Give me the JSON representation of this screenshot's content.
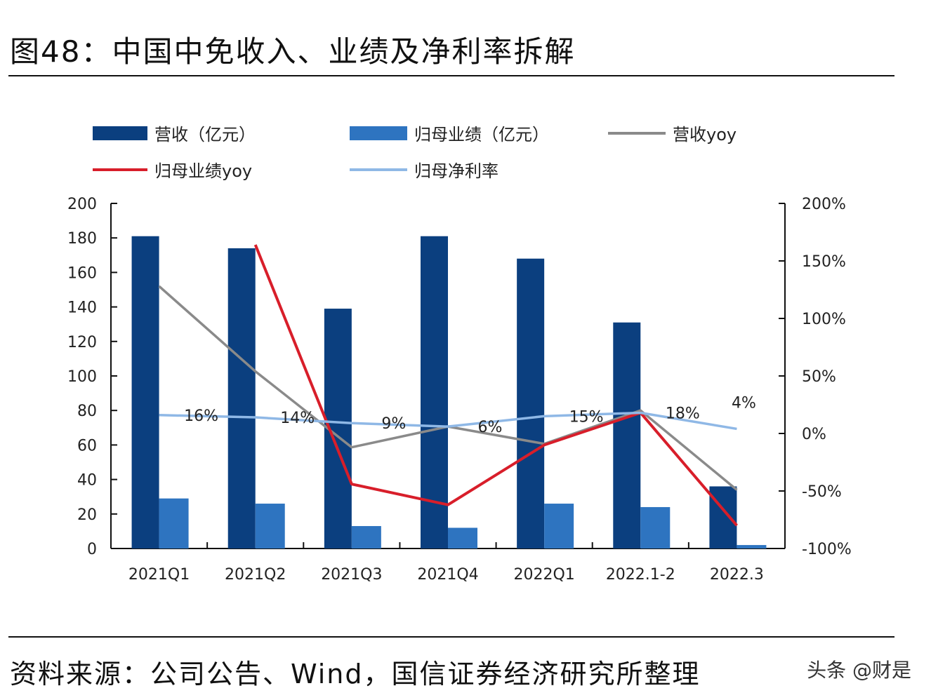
{
  "title": "图48：中国中免收入、业绩及净利率拆解",
  "source": "资料来源：公司公告、Wind，国信证券经济研究所整理",
  "watermark": "头条 @财是",
  "chart_data": {
    "type": "bar+line",
    "categories": [
      "2021Q1",
      "2021Q2",
      "2021Q3",
      "2021Q4",
      "2022Q1",
      "2022.1-2",
      "2022.3"
    ],
    "left_axis": {
      "ylim": [
        0,
        200
      ],
      "ticks": [
        "0",
        "20",
        "40",
        "60",
        "80",
        "100",
        "120",
        "140",
        "160",
        "180",
        "200"
      ]
    },
    "right_axis": {
      "ylim": [
        -100,
        200
      ],
      "ticks": [
        "-100%",
        "-50%",
        "0%",
        "50%",
        "100%",
        "150%",
        "200%"
      ]
    },
    "legend": [
      "营收（亿元）",
      "归母业绩（亿元）",
      "营收yoy",
      "归母业绩yoy",
      "归母净利率"
    ],
    "series": [
      {
        "name": "营收（亿元）",
        "kind": "bar",
        "axis": "left",
        "color": "#0b3f7f",
        "values": [
          181,
          174,
          139,
          181,
          168,
          131,
          36
        ]
      },
      {
        "name": "归母业绩（亿元）",
        "kind": "bar",
        "axis": "left",
        "color": "#2e74c0",
        "values": [
          29,
          26,
          13,
          12,
          26,
          24,
          2
        ]
      },
      {
        "name": "营收yoy",
        "kind": "line",
        "axis": "right",
        "color": "#8a8a8a",
        "values": [
          128,
          54,
          -12,
          6,
          -9,
          20,
          -49
        ]
      },
      {
        "name": "归母业绩yoy",
        "kind": "line",
        "axis": "right",
        "color": "#d81e2a",
        "values": [
          null,
          164,
          -44,
          -62,
          -10,
          18,
          -80
        ]
      },
      {
        "name": "归母净利率",
        "kind": "line",
        "axis": "right",
        "color": "#8fb8e6",
        "values": [
          16,
          14,
          9,
          6,
          15,
          18,
          4
        ],
        "labels": [
          "16%",
          "14%",
          "9%",
          "6%",
          "15%",
          "18%",
          "4%"
        ]
      }
    ]
  }
}
